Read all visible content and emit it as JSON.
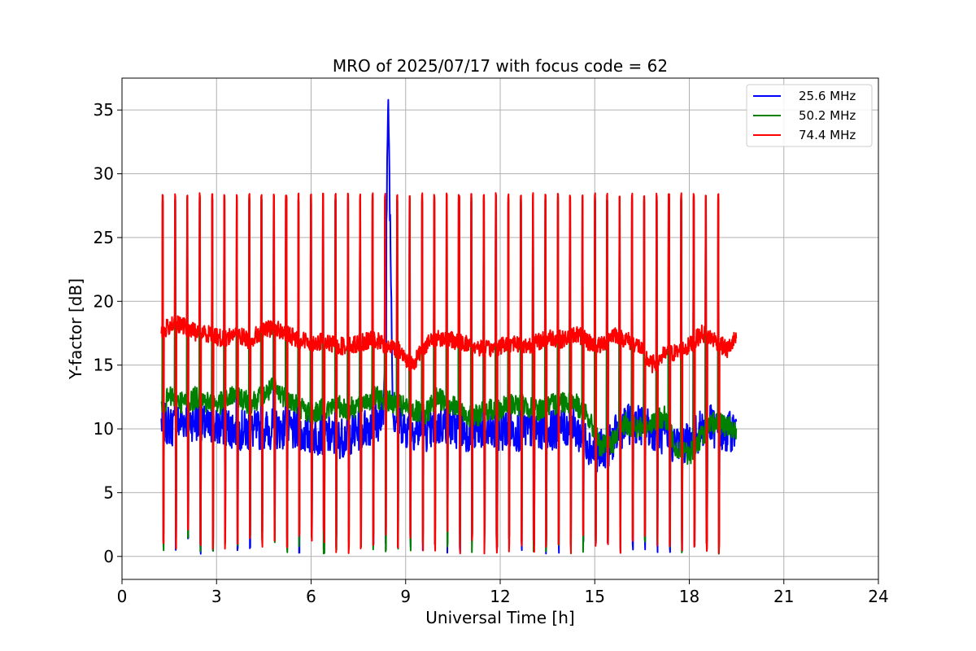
{
  "chart_data": {
    "type": "line",
    "title": "MRO of 2025/07/17 with focus code = 62",
    "xlabel": "Universal Time [h]",
    "ylabel": "Y-factor [dB]",
    "xlim": [
      0,
      24
    ],
    "ylim": [
      -1.8,
      37.5
    ],
    "xticks": [
      0,
      3,
      6,
      9,
      12,
      15,
      18,
      21,
      24
    ],
    "yticks": [
      0,
      5,
      10,
      15,
      20,
      25,
      30,
      35
    ],
    "grid": true,
    "legend_position": "top-right",
    "series": [
      {
        "name": "25.6 MHz",
        "color": "#0000ff",
        "x": [
          1.25,
          1.6,
          2.0,
          2.4,
          2.8,
          3.2,
          3.6,
          4.0,
          4.4,
          4.8,
          5.2,
          5.6,
          6.0,
          6.4,
          6.8,
          7.2,
          7.6,
          8.0,
          8.3,
          8.45,
          8.6,
          9.0,
          9.4,
          9.8,
          10.2,
          10.6,
          11.0,
          11.4,
          11.8,
          12.2,
          12.6,
          13.0,
          13.4,
          13.8,
          14.2,
          14.6,
          15.0,
          15.4,
          15.8,
          16.2,
          16.6,
          17.0,
          17.4,
          17.8,
          18.2,
          18.6,
          19.0,
          19.5
        ],
        "y": [
          10.5,
          10.2,
          10.8,
          10.5,
          10.0,
          10.2,
          10.0,
          9.8,
          9.9,
          10.0,
          10.0,
          9.6,
          9.5,
          9.6,
          9.2,
          9.5,
          9.9,
          10.5,
          10.8,
          35.8,
          11.2,
          10.0,
          9.9,
          9.8,
          10.4,
          10.0,
          9.8,
          10.0,
          9.5,
          10.0,
          9.8,
          10.0,
          9.9,
          10.0,
          10.2,
          9.5,
          8.2,
          8.5,
          10.0,
          10.5,
          10.2,
          9.8,
          9.0,
          8.8,
          9.5,
          10.5,
          9.5,
          10.0
        ]
      },
      {
        "name": "50.2 MHz",
        "color": "#008000",
        "x": [
          1.25,
          1.6,
          2.0,
          2.4,
          2.8,
          3.2,
          3.6,
          4.0,
          4.4,
          4.8,
          5.2,
          5.6,
          6.0,
          6.4,
          6.8,
          7.2,
          7.6,
          8.0,
          8.4,
          8.8,
          9.2,
          9.6,
          10.0,
          10.4,
          10.8,
          11.2,
          11.6,
          12.0,
          12.4,
          12.8,
          13.2,
          13.6,
          14.0,
          14.4,
          14.8,
          15.2,
          15.6,
          16.0,
          16.4,
          16.8,
          17.2,
          17.6,
          18.0,
          18.4,
          18.8,
          19.2,
          19.5
        ],
        "y": [
          12.0,
          12.5,
          12.0,
          12.5,
          12.0,
          12.0,
          12.8,
          12.0,
          12.5,
          13.2,
          12.5,
          11.8,
          11.2,
          11.5,
          11.8,
          11.5,
          12.0,
          12.5,
          12.2,
          11.8,
          11.5,
          11.0,
          12.5,
          12.0,
          11.2,
          11.0,
          11.5,
          11.5,
          12.0,
          11.8,
          11.5,
          11.8,
          12.2,
          12.0,
          10.8,
          8.5,
          9.0,
          10.5,
          10.0,
          10.5,
          11.0,
          8.5,
          8.0,
          9.5,
          10.5,
          10.2,
          10.0
        ]
      },
      {
        "name": "74.4 MHz",
        "color": "#ff0000",
        "x": [
          1.25,
          1.6,
          2.0,
          2.4,
          2.8,
          3.2,
          3.6,
          4.0,
          4.4,
          4.8,
          5.2,
          5.6,
          6.0,
          6.4,
          6.8,
          7.2,
          7.6,
          8.0,
          8.4,
          8.8,
          9.2,
          9.6,
          10.0,
          10.4,
          10.8,
          11.2,
          11.6,
          12.0,
          12.4,
          12.8,
          13.2,
          13.6,
          14.0,
          14.4,
          14.8,
          15.2,
          15.6,
          16.0,
          16.4,
          16.8,
          17.2,
          17.6,
          18.0,
          18.4,
          18.8,
          19.2,
          19.5
        ],
        "y": [
          17.5,
          18.3,
          18.0,
          17.5,
          17.5,
          17.0,
          17.5,
          17.0,
          17.5,
          18.0,
          17.5,
          17.0,
          16.8,
          16.8,
          16.5,
          16.5,
          16.8,
          17.0,
          16.5,
          16.2,
          15.0,
          16.5,
          17.2,
          17.0,
          16.8,
          16.5,
          16.2,
          16.5,
          16.8,
          16.5,
          16.8,
          17.2,
          17.0,
          17.5,
          16.8,
          16.5,
          17.5,
          17.0,
          16.5,
          15.0,
          15.8,
          16.0,
          16.5,
          17.5,
          17.0,
          16.2,
          17.2
        ]
      }
    ],
    "calibration_pulses": {
      "count": 47,
      "x_start": 1.28,
      "x_end": 19.3,
      "peak": 28.5,
      "trough": 0.2
    }
  }
}
